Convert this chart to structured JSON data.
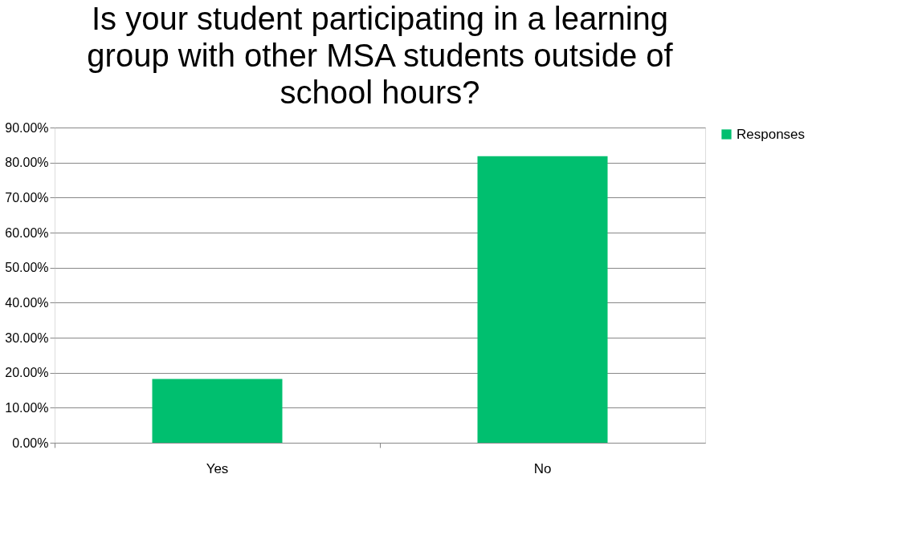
{
  "chart_data": {
    "type": "bar",
    "title": "Is your student participating in a learning group with other MSA students outside of school hours?",
    "categories": [
      "Yes",
      "No"
    ],
    "series": [
      {
        "name": "Responses",
        "color": "#00bf6f",
        "values": [
          18.2,
          81.8
        ]
      }
    ],
    "ylim": [
      0,
      90
    ],
    "yticks": [
      {
        "value": 0,
        "label": "0.00%"
      },
      {
        "value": 10,
        "label": "10.00%"
      },
      {
        "value": 20,
        "label": "20.00%"
      },
      {
        "value": 30,
        "label": "30.00%"
      },
      {
        "value": 40,
        "label": "40.00%"
      },
      {
        "value": 50,
        "label": "50.00%"
      },
      {
        "value": 60,
        "label": "60.00%"
      },
      {
        "value": 70,
        "label": "70.00%"
      },
      {
        "value": 80,
        "label": "80.00%"
      },
      {
        "value": 90,
        "label": "90.00%"
      }
    ],
    "grid": "y",
    "legend": "right"
  }
}
